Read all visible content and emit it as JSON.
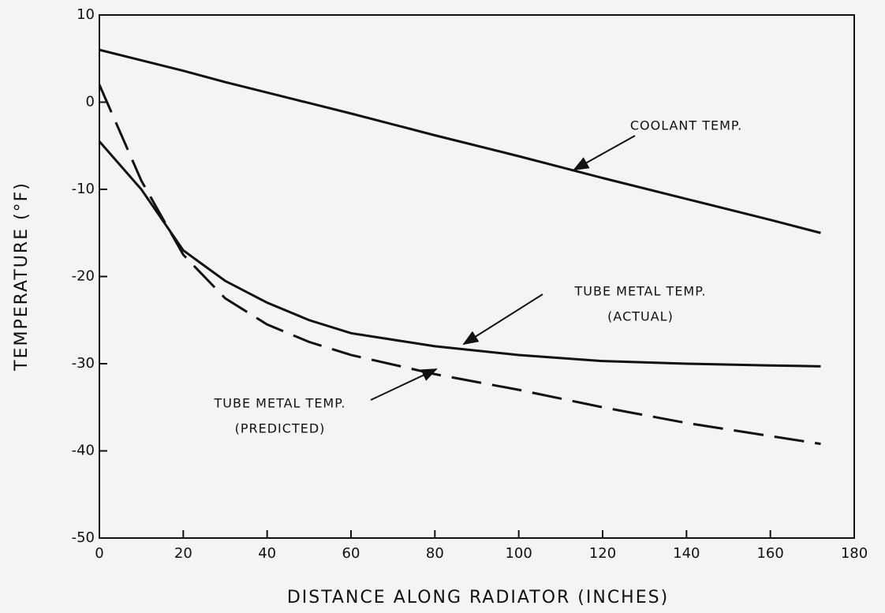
{
  "chart_data": {
    "type": "line",
    "xlabel": "DISTANCE ALONG RADIATOR (INCHES)",
    "ylabel": "TEMPERATURE (°F)",
    "x": [
      0,
      10,
      20,
      30,
      40,
      50,
      60,
      80,
      100,
      120,
      140,
      160,
      172
    ],
    "series": [
      {
        "color": "#111111",
        "dashed": false,
        "values": [
          6,
          4.8,
          3.6,
          2.3,
          1.1,
          -0.1,
          -1.3,
          -3.8,
          -6.2,
          -8.7,
          -11.1,
          -13.5,
          -15
        ]
      },
      {
        "color": "#111111",
        "dashed": false,
        "values": [
          -4.5,
          -10,
          -17,
          -20.5,
          -23,
          -25,
          -26.5,
          -28,
          -29,
          -29.7,
          -30,
          -30.2,
          -30.3
        ]
      },
      {
        "color": "#111111",
        "dashed": true,
        "values": [
          2,
          -9,
          -17.5,
          -22.5,
          -25.5,
          -27.5,
          -29,
          -31.2,
          -33,
          -35,
          -36.8,
          -38.3,
          -39.2
        ]
      }
    ],
    "annotations": [
      {
        "lines": [
          "COOLANT TEMP."
        ],
        "series": 0
      },
      {
        "lines": [
          "TUBE METAL TEMP.",
          "(ACTUAL)"
        ],
        "series": 1
      },
      {
        "lines": [
          "TUBE METAL TEMP.",
          "(PREDICTED)"
        ],
        "series": 2
      }
    ],
    "xlim": [
      0,
      180
    ],
    "ylim": [
      -50,
      10
    ],
    "xticks": [
      0,
      20,
      40,
      60,
      80,
      100,
      120,
      140,
      160,
      180
    ],
    "yticks": [
      -50,
      -40,
      -30,
      -20,
      -10,
      0,
      10
    ],
    "grid": false
  }
}
